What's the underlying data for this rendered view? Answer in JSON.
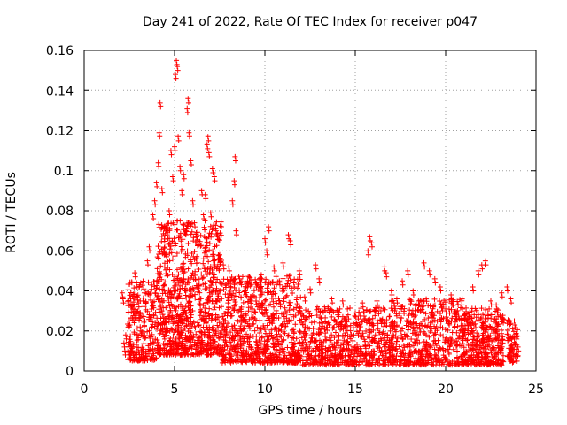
{
  "chart_data": {
    "type": "scatter",
    "title": "Day 241 of 2022, Rate Of TEC Index for receiver p047",
    "xlabel": "GPS time / hours",
    "ylabel": "ROTI / TECUs",
    "xlim": [
      0,
      25
    ],
    "ylim": [
      0,
      0.16
    ],
    "x_ticks": [
      "0",
      "5",
      "10",
      "15",
      "20",
      "25"
    ],
    "y_ticks": [
      "0",
      "0.02",
      "0.04",
      "0.06",
      "0.08",
      "0.1",
      "0.12",
      "0.14",
      "0.16"
    ],
    "grid": true,
    "marker": "+",
    "series": [
      {
        "name": "ROTI",
        "color": "#ff0000",
        "points": [
          [
            2.1,
            0.039
          ],
          [
            2.15,
            0.036
          ],
          [
            2.2,
            0.014
          ],
          [
            2.25,
            0.01
          ],
          [
            2.3,
            0.018
          ],
          [
            2.5,
            0.025
          ],
          [
            2.6,
            0.012
          ],
          [
            2.7,
            0.031
          ],
          [
            2.8,
            0.049
          ],
          [
            2.9,
            0.044
          ],
          [
            3.0,
            0.034
          ],
          [
            3.1,
            0.022
          ],
          [
            3.3,
            0.041
          ],
          [
            3.5,
            0.055
          ],
          [
            3.6,
            0.062
          ],
          [
            3.8,
            0.078
          ],
          [
            3.9,
            0.085
          ],
          [
            4.0,
            0.094
          ],
          [
            4.1,
            0.104
          ],
          [
            4.15,
            0.119
          ],
          [
            4.2,
            0.134
          ],
          [
            4.3,
            0.091
          ],
          [
            4.4,
            0.06
          ],
          [
            4.5,
            0.072
          ],
          [
            4.6,
            0.068
          ],
          [
            4.7,
            0.08
          ],
          [
            4.8,
            0.11
          ],
          [
            4.9,
            0.097
          ],
          [
            5.0,
            0.112
          ],
          [
            5.05,
            0.148
          ],
          [
            5.1,
            0.155
          ],
          [
            5.15,
            0.152
          ],
          [
            5.2,
            0.117
          ],
          [
            5.3,
            0.102
          ],
          [
            5.4,
            0.09
          ],
          [
            5.5,
            0.098
          ],
          [
            5.6,
            0.07
          ],
          [
            5.7,
            0.131
          ],
          [
            5.75,
            0.136
          ],
          [
            5.8,
            0.119
          ],
          [
            5.9,
            0.105
          ],
          [
            6.0,
            0.085
          ],
          [
            6.1,
            0.074
          ],
          [
            6.2,
            0.069
          ],
          [
            6.3,
            0.065
          ],
          [
            6.5,
            0.09
          ],
          [
            6.6,
            0.078
          ],
          [
            6.7,
            0.088
          ],
          [
            6.8,
            0.113
          ],
          [
            6.85,
            0.117
          ],
          [
            6.9,
            0.109
          ],
          [
            7.0,
            0.079
          ],
          [
            7.1,
            0.101
          ],
          [
            7.2,
            0.097
          ],
          [
            7.3,
            0.07
          ],
          [
            7.5,
            0.058
          ],
          [
            7.7,
            0.053
          ],
          [
            8.0,
            0.052
          ],
          [
            8.2,
            0.085
          ],
          [
            8.3,
            0.095
          ],
          [
            8.35,
            0.107
          ],
          [
            8.4,
            0.07
          ],
          [
            8.6,
            0.046
          ],
          [
            8.9,
            0.04
          ],
          [
            9.2,
            0.037
          ],
          [
            9.5,
            0.044
          ],
          [
            9.8,
            0.048
          ],
          [
            10.0,
            0.066
          ],
          [
            10.1,
            0.06
          ],
          [
            10.2,
            0.072
          ],
          [
            10.5,
            0.052
          ],
          [
            10.8,
            0.045
          ],
          [
            11.0,
            0.054
          ],
          [
            11.3,
            0.068
          ],
          [
            11.4,
            0.065
          ],
          [
            11.6,
            0.044
          ],
          [
            11.9,
            0.05
          ],
          [
            12.2,
            0.037
          ],
          [
            12.5,
            0.041
          ],
          [
            12.8,
            0.053
          ],
          [
            13.0,
            0.046
          ],
          [
            13.3,
            0.032
          ],
          [
            13.7,
            0.036
          ],
          [
            14.0,
            0.03
          ],
          [
            14.3,
            0.035
          ],
          [
            14.6,
            0.028
          ],
          [
            15.0,
            0.029
          ],
          [
            15.4,
            0.034
          ],
          [
            15.7,
            0.06
          ],
          [
            15.8,
            0.067
          ],
          [
            15.9,
            0.064
          ],
          [
            16.2,
            0.035
          ],
          [
            16.6,
            0.052
          ],
          [
            16.7,
            0.049
          ],
          [
            17.0,
            0.04
          ],
          [
            17.3,
            0.036
          ],
          [
            17.6,
            0.045
          ],
          [
            17.9,
            0.05
          ],
          [
            18.2,
            0.04
          ],
          [
            18.5,
            0.035
          ],
          [
            18.8,
            0.054
          ],
          [
            19.1,
            0.05
          ],
          [
            19.4,
            0.046
          ],
          [
            19.7,
            0.042
          ],
          [
            20.0,
            0.031
          ],
          [
            20.3,
            0.038
          ],
          [
            20.6,
            0.028
          ],
          [
            20.9,
            0.033
          ],
          [
            21.2,
            0.025
          ],
          [
            21.5,
            0.042
          ],
          [
            21.8,
            0.05
          ],
          [
            22.0,
            0.053
          ],
          [
            22.2,
            0.055
          ],
          [
            22.5,
            0.035
          ],
          [
            22.8,
            0.033
          ],
          [
            23.1,
            0.039
          ],
          [
            23.4,
            0.042
          ],
          [
            23.6,
            0.036
          ],
          [
            23.8,
            0.025
          ],
          [
            24.0,
            0.012
          ]
        ],
        "bands": [
          {
            "x_start": 2.4,
            "x_end": 4.0,
            "y_min": 0.005,
            "y_max": 0.045,
            "count": 260
          },
          {
            "x_start": 4.0,
            "x_end": 7.6,
            "y_min": 0.008,
            "y_max": 0.075,
            "count": 900
          },
          {
            "x_start": 7.6,
            "x_end": 12.0,
            "y_min": 0.004,
            "y_max": 0.048,
            "count": 760
          },
          {
            "x_start": 12.0,
            "x_end": 17.0,
            "y_min": 0.003,
            "y_max": 0.032,
            "count": 620
          },
          {
            "x_start": 17.0,
            "x_end": 21.0,
            "y_min": 0.003,
            "y_max": 0.036,
            "count": 520
          },
          {
            "x_start": 21.0,
            "x_end": 23.2,
            "y_min": 0.003,
            "y_max": 0.032,
            "count": 360
          },
          {
            "x_start": 23.4,
            "x_end": 24.0,
            "y_min": 0.004,
            "y_max": 0.026,
            "count": 80
          }
        ]
      }
    ]
  }
}
